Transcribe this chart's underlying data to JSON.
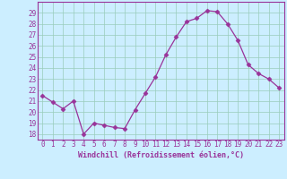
{
  "x": [
    0,
    1,
    2,
    3,
    4,
    5,
    6,
    7,
    8,
    9,
    10,
    11,
    12,
    13,
    14,
    15,
    16,
    17,
    18,
    19,
    20,
    21,
    22,
    23
  ],
  "y": [
    21.5,
    20.9,
    20.3,
    21.0,
    18.0,
    19.0,
    18.8,
    18.6,
    18.5,
    20.2,
    21.7,
    23.2,
    25.2,
    26.8,
    28.2,
    28.5,
    29.2,
    29.1,
    28.0,
    26.5,
    24.3,
    23.5,
    23.0,
    22.2
  ],
  "line_color": "#993399",
  "marker": "D",
  "marker_size": 2.5,
  "bg_color": "#cceeff",
  "grid_color": "#99ccbb",
  "xlabel": "Windchill (Refroidissement éolien,°C)",
  "ylim": [
    17.5,
    30.0
  ],
  "xlim": [
    -0.5,
    23.5
  ],
  "yticks": [
    18,
    19,
    20,
    21,
    22,
    23,
    24,
    25,
    26,
    27,
    28,
    29
  ],
  "xticks": [
    0,
    1,
    2,
    3,
    4,
    5,
    6,
    7,
    8,
    9,
    10,
    11,
    12,
    13,
    14,
    15,
    16,
    17,
    18,
    19,
    20,
    21,
    22,
    23
  ],
  "tick_label_fontsize": 5.5,
  "xlabel_fontsize": 6.0,
  "tick_color": "#993399",
  "label_color": "#993399",
  "spine_color": "#993399"
}
